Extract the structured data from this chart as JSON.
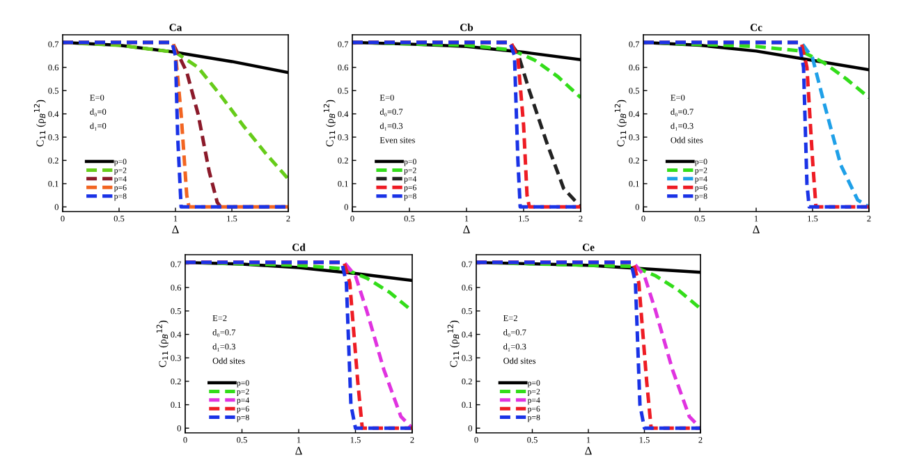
{
  "chart_data": [
    {
      "type": "line",
      "title": "Ca",
      "xlabel": "Δ",
      "ylabel": "C$_{11}$ (ρ$_{B}$$^{12}$)",
      "xlim": [
        0,
        2
      ],
      "ylim": [
        -0.02,
        0.74
      ],
      "xticks": [
        0,
        0.5,
        1,
        1.5,
        2
      ],
      "yticks": [
        0,
        0.1,
        0.2,
        0.3,
        0.4,
        0.5,
        0.6,
        0.7
      ],
      "grid": false,
      "legend": "bottom left",
      "annotations": [
        "E=0",
        "d₀=0",
        "d₁=0"
      ],
      "series": [
        {
          "name": "p=0",
          "color": "#000000",
          "line_style": "solid",
          "x": [
            0,
            0.5,
            1,
            1.5,
            2
          ],
          "values": [
            0.707,
            0.695,
            0.665,
            0.625,
            0.578
          ]
        },
        {
          "name": "p=2",
          "color": "#66cc1a",
          "line_style": "dashed",
          "x": [
            0,
            0.5,
            1,
            1.2,
            1.4,
            1.6,
            1.8,
            2
          ],
          "values": [
            0.707,
            0.695,
            0.665,
            0.6,
            0.48,
            0.35,
            0.23,
            0.12
          ]
        },
        {
          "name": "p=4",
          "color": "#8b1a2a",
          "line_style": "dashed",
          "x": [
            0,
            0.97,
            1.0,
            1.1,
            1.2,
            1.3,
            1.37,
            1.4,
            2
          ],
          "values": [
            0.707,
            0.707,
            0.68,
            0.58,
            0.4,
            0.15,
            0.02,
            0,
            0
          ]
        },
        {
          "name": "p=6",
          "color": "#f26522",
          "line_style": "dashed",
          "x": [
            0,
            0.98,
            1.0,
            1.05,
            1.1,
            1.12,
            2
          ],
          "values": [
            0.707,
            0.707,
            0.66,
            0.4,
            0.05,
            0,
            0
          ]
        },
        {
          "name": "p=8",
          "color": "#1a33e6",
          "line_style": "dashed",
          "x": [
            0,
            0.97,
            1.0,
            1.02,
            1.05,
            2
          ],
          "values": [
            0.707,
            0.707,
            0.65,
            0.3,
            0,
            0
          ]
        }
      ]
    },
    {
      "type": "line",
      "title": "Cb",
      "xlabel": "Δ",
      "ylabel": "C$_{11}$ (ρ$_{B}$$^{12}$)",
      "xlim": [
        0,
        2
      ],
      "ylim": [
        -0.02,
        0.74
      ],
      "xticks": [
        0,
        0.5,
        1,
        1.5,
        2
      ],
      "yticks": [
        0,
        0.1,
        0.2,
        0.3,
        0.4,
        0.5,
        0.6,
        0.7
      ],
      "grid": false,
      "legend": "bottom left",
      "annotations": [
        "E=0",
        "d₀=0.7",
        "d₁=0.3",
        "Even sites"
      ],
      "series": [
        {
          "name": "p=0",
          "color": "#000000",
          "line_style": "solid",
          "x": [
            0,
            0.5,
            1,
            1.5,
            2
          ],
          "values": [
            0.707,
            0.7,
            0.69,
            0.665,
            0.633
          ]
        },
        {
          "name": "p=2",
          "color": "#33dd1a",
          "line_style": "dashed",
          "x": [
            0,
            1,
            1.4,
            1.6,
            1.8,
            2
          ],
          "values": [
            0.707,
            0.695,
            0.675,
            0.63,
            0.56,
            0.47
          ]
        },
        {
          "name": "p=4",
          "color": "#222222",
          "line_style": "dashed",
          "x": [
            0,
            1.38,
            1.45,
            1.55,
            1.7,
            1.85,
            2
          ],
          "values": [
            0.707,
            0.707,
            0.66,
            0.5,
            0.28,
            0.08,
            0
          ]
        },
        {
          "name": "p=6",
          "color": "#ee1c24",
          "line_style": "dashed",
          "x": [
            0,
            1.39,
            1.45,
            1.5,
            1.53,
            1.55,
            2
          ],
          "values": [
            0.707,
            0.707,
            0.64,
            0.35,
            0.05,
            0,
            0
          ]
        },
        {
          "name": "p=8",
          "color": "#1a33e6",
          "line_style": "dashed",
          "x": [
            0,
            1.38,
            1.42,
            1.45,
            1.47,
            2
          ],
          "values": [
            0.707,
            0.707,
            0.65,
            0.2,
            0,
            0
          ]
        }
      ]
    },
    {
      "type": "line",
      "title": "Cc",
      "xlabel": "Δ",
      "ylabel": "C$_{11}$ (ρ$_{B}$$^{12}$)",
      "xlim": [
        0,
        2
      ],
      "ylim": [
        -0.02,
        0.74
      ],
      "xticks": [
        0,
        0.5,
        1,
        1.5,
        2
      ],
      "yticks": [
        0,
        0.1,
        0.2,
        0.3,
        0.4,
        0.5,
        0.6,
        0.7
      ],
      "grid": false,
      "legend": "bottom left",
      "annotations": [
        "E=0",
        "d₀=0.7",
        "d₁=0.3",
        "Odd sites"
      ],
      "series": [
        {
          "name": "p=0",
          "color": "#000000",
          "line_style": "solid",
          "x": [
            0,
            0.5,
            1,
            1.5,
            2
          ],
          "values": [
            0.707,
            0.695,
            0.67,
            0.63,
            0.59
          ]
        },
        {
          "name": "p=2",
          "color": "#33dd1a",
          "line_style": "dashed",
          "x": [
            0,
            1,
            1.4,
            1.6,
            1.8,
            2
          ],
          "values": [
            0.707,
            0.69,
            0.67,
            0.62,
            0.55,
            0.47
          ]
        },
        {
          "name": "p=4",
          "color": "#1fa0e8",
          "line_style": "dashed",
          "x": [
            0,
            1.4,
            1.5,
            1.6,
            1.75,
            1.9,
            2
          ],
          "values": [
            0.707,
            0.707,
            0.64,
            0.45,
            0.18,
            0.03,
            0
          ]
        },
        {
          "name": "p=6",
          "color": "#ee1c24",
          "line_style": "dashed",
          "x": [
            0,
            1.4,
            1.45,
            1.5,
            1.53,
            2
          ],
          "values": [
            0.707,
            0.707,
            0.6,
            0.2,
            0,
            0
          ]
        },
        {
          "name": "p=8",
          "color": "#1a33e6",
          "line_style": "dashed",
          "x": [
            0,
            1.38,
            1.42,
            1.45,
            1.47,
            2
          ],
          "values": [
            0.707,
            0.707,
            0.6,
            0.1,
            0,
            0
          ]
        }
      ]
    },
    {
      "type": "line",
      "title": "Cd",
      "xlabel": "Δ",
      "ylabel": "C$_{11}$ (ρ$_{B}$$^{12}$)",
      "xlim": [
        0,
        2
      ],
      "ylim": [
        -0.02,
        0.74
      ],
      "xticks": [
        0,
        0.5,
        1,
        1.5,
        2
      ],
      "yticks": [
        0,
        0.1,
        0.2,
        0.3,
        0.4,
        0.5,
        0.6,
        0.7
      ],
      "grid": false,
      "legend": "bottom left",
      "annotations": [
        "E=2",
        "d₀=0.7",
        "d₁=0.3",
        "Odd sites"
      ],
      "series": [
        {
          "name": "p=0",
          "color": "#000000",
          "line_style": "solid",
          "x": [
            0,
            0.5,
            1,
            1.5,
            2
          ],
          "values": [
            0.707,
            0.7,
            0.685,
            0.66,
            0.63
          ]
        },
        {
          "name": "p=2",
          "color": "#33dd1a",
          "line_style": "dashed",
          "x": [
            0,
            1,
            1.4,
            1.6,
            1.8,
            2
          ],
          "values": [
            0.707,
            0.695,
            0.68,
            0.64,
            0.58,
            0.5
          ]
        },
        {
          "name": "p=4",
          "color": "#e033e0",
          "line_style": "dashed",
          "x": [
            0,
            1.4,
            1.5,
            1.6,
            1.75,
            1.9,
            2
          ],
          "values": [
            0.707,
            0.707,
            0.65,
            0.5,
            0.25,
            0.05,
            0
          ]
        },
        {
          "name": "p=6",
          "color": "#ee1c24",
          "line_style": "dashed",
          "x": [
            0,
            1.4,
            1.45,
            1.52,
            1.56,
            2
          ],
          "values": [
            0.707,
            0.707,
            0.62,
            0.2,
            0,
            0
          ]
        },
        {
          "name": "p=8",
          "color": "#1a33e6",
          "line_style": "dashed",
          "x": [
            0,
            1.38,
            1.42,
            1.46,
            1.5,
            2
          ],
          "values": [
            0.707,
            0.707,
            0.62,
            0.1,
            0,
            0
          ]
        }
      ]
    },
    {
      "type": "line",
      "title": "Ce",
      "xlabel": "Δ",
      "ylabel": "C$_{11}$ (ρ$_{B}$$^{12}$)",
      "xlim": [
        0,
        2
      ],
      "ylim": [
        -0.02,
        0.74
      ],
      "xticks": [
        0,
        0.5,
        1,
        1.5,
        2
      ],
      "yticks": [
        0,
        0.1,
        0.2,
        0.3,
        0.4,
        0.5,
        0.6,
        0.7
      ],
      "grid": false,
      "legend": "bottom left",
      "annotations": [
        "E=2",
        "d₀=0.7",
        "d₁=0.3",
        "Odd sites"
      ],
      "series": [
        {
          "name": "p=0",
          "color": "#000000",
          "line_style": "solid",
          "x": [
            0,
            1,
            1.5,
            2
          ],
          "values": [
            0.707,
            0.695,
            0.68,
            0.665
          ]
        },
        {
          "name": "p=2",
          "color": "#33dd1a",
          "line_style": "dashed",
          "x": [
            0,
            1.4,
            1.6,
            1.8,
            2
          ],
          "values": [
            0.707,
            0.69,
            0.65,
            0.59,
            0.51
          ]
        },
        {
          "name": "p=4",
          "color": "#e033e0",
          "line_style": "dashed",
          "x": [
            0,
            1.4,
            1.5,
            1.6,
            1.75,
            1.9,
            2
          ],
          "values": [
            0.707,
            0.707,
            0.65,
            0.5,
            0.25,
            0.05,
            0
          ]
        },
        {
          "name": "p=6",
          "color": "#ee1c24",
          "line_style": "dashed",
          "x": [
            0,
            1.4,
            1.45,
            1.52,
            1.56,
            2
          ],
          "values": [
            0.707,
            0.707,
            0.62,
            0.2,
            0,
            0
          ]
        },
        {
          "name": "p=8",
          "color": "#1a33e6",
          "line_style": "dashed",
          "x": [
            0,
            1.38,
            1.42,
            1.46,
            1.5,
            2
          ],
          "values": [
            0.707,
            0.707,
            0.62,
            0.1,
            0,
            0
          ]
        }
      ]
    }
  ]
}
